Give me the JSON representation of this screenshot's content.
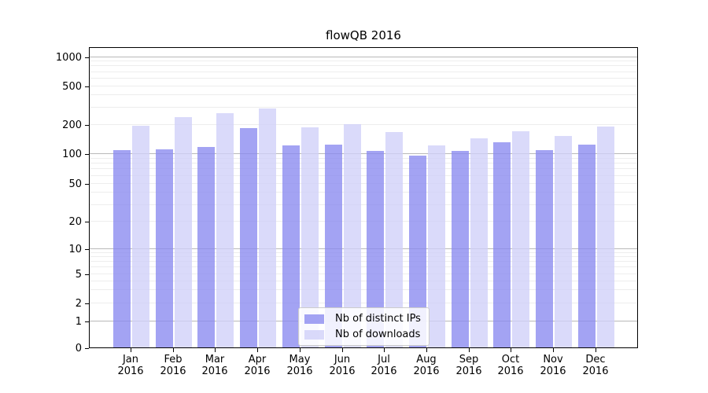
{
  "chart_data": {
    "type": "bar",
    "title": "flowQB 2016",
    "categories": [
      "Jan 2016",
      "Feb 2016",
      "Mar 2016",
      "Apr 2016",
      "May 2016",
      "Jun 2016",
      "Jul 2016",
      "Aug 2016",
      "Sep 2016",
      "Oct 2016",
      "Nov 2016",
      "Dec 2016"
    ],
    "series": [
      {
        "name": "Nb of distinct IPs",
        "color": "#8989f0",
        "values": [
          107,
          110,
          117,
          180,
          120,
          122,
          106,
          95,
          105,
          130,
          108,
          122
        ]
      },
      {
        "name": "Nb of downloads",
        "color": "#d0d0f9",
        "values": [
          192,
          234,
          257,
          288,
          184,
          199,
          165,
          121,
          143,
          168,
          149,
          186
        ]
      }
    ],
    "yscale": "symlog",
    "ylim": [
      0,
      1000
    ],
    "yticks": [
      0,
      1,
      2,
      5,
      10,
      20,
      50,
      100,
      200,
      500,
      1000
    ],
    "grid": true,
    "legend_position": "lower center",
    "bar_alpha": 0.78
  }
}
